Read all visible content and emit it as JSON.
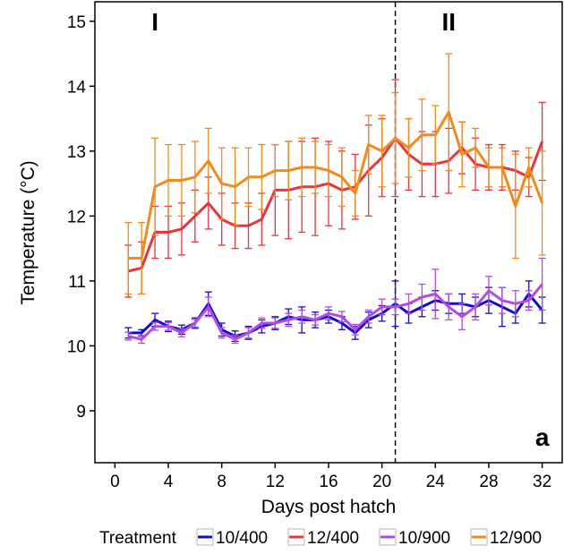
{
  "chart_data": {
    "type": "line",
    "xlabel": "Days post hatch",
    "ylabel": "Temperature (°C)",
    "xlim": [
      -1.5,
      33.5
    ],
    "ylim": [
      8.2,
      15.3
    ],
    "xticks": [
      0,
      4,
      8,
      12,
      16,
      20,
      24,
      28,
      32
    ],
    "yticks": [
      9,
      10,
      11,
      12,
      13,
      14,
      15
    ],
    "grid": false,
    "error_bars": true,
    "vline": {
      "x": 21,
      "style": "dashed"
    },
    "annotations": [
      {
        "text": "I",
        "x": 3,
        "y": 15
      },
      {
        "text": "II",
        "x": 25,
        "y": 15
      },
      {
        "text": "a",
        "x": 32,
        "y": 8.6
      }
    ],
    "legend": {
      "title": "Treatment",
      "position": "bottom"
    },
    "series": [
      {
        "name": "10/400",
        "color": "#1010c8",
        "x": [
          1,
          2,
          3,
          4,
          5,
          6,
          7,
          8,
          9,
          10,
          11,
          12,
          13,
          14,
          15,
          16,
          17,
          18,
          19,
          20,
          21,
          22,
          23,
          24,
          25,
          26,
          27,
          28,
          29,
          30,
          31,
          32
        ],
        "y": [
          10.2,
          10.2,
          10.4,
          10.3,
          10.25,
          10.35,
          10.65,
          10.25,
          10.15,
          10.2,
          10.3,
          10.35,
          10.45,
          10.4,
          10.4,
          10.45,
          10.35,
          10.2,
          10.4,
          10.5,
          10.65,
          10.5,
          10.6,
          10.7,
          10.65,
          10.65,
          10.6,
          10.7,
          10.6,
          10.5,
          10.8,
          10.55
        ],
        "err": [
          0.08,
          0.05,
          0.1,
          0.08,
          0.07,
          0.08,
          0.18,
          0.1,
          0.08,
          0.1,
          0.1,
          0.1,
          0.12,
          0.2,
          0.12,
          0.1,
          0.1,
          0.1,
          0.12,
          0.12,
          0.35,
          0.15,
          0.15,
          0.15,
          0.15,
          0.15,
          0.15,
          0.2,
          0.3,
          0.15,
          0.2,
          0.2
        ]
      },
      {
        "name": "12/400",
        "color": "#e8343c",
        "x": [
          1,
          2,
          3,
          4,
          5,
          6,
          7,
          8,
          9,
          10,
          11,
          12,
          13,
          14,
          15,
          16,
          17,
          18,
          19,
          20,
          21,
          22,
          23,
          24,
          25,
          26,
          27,
          28,
          29,
          30,
          31,
          32
        ],
        "y": [
          11.15,
          11.2,
          11.75,
          11.75,
          11.8,
          12.0,
          12.2,
          11.95,
          11.85,
          11.85,
          11.95,
          12.4,
          12.4,
          12.45,
          12.45,
          12.5,
          12.4,
          12.45,
          12.7,
          12.9,
          13.2,
          12.95,
          12.8,
          12.8,
          12.85,
          13.05,
          12.8,
          12.75,
          12.75,
          12.7,
          12.6,
          13.15
        ],
        "err": [
          0.4,
          0.4,
          0.4,
          0.4,
          0.4,
          0.4,
          0.4,
          0.4,
          0.35,
          0.35,
          0.4,
          0.7,
          0.75,
          0.7,
          0.75,
          0.65,
          0.6,
          0.5,
          0.7,
          0.6,
          0.9,
          0.55,
          0.5,
          0.5,
          0.5,
          0.4,
          0.4,
          0.35,
          0.35,
          0.3,
          0.3,
          0.6
        ]
      },
      {
        "name": "10/900",
        "color": "#b24be8",
        "x": [
          1,
          2,
          3,
          4,
          5,
          6,
          7,
          8,
          9,
          10,
          11,
          12,
          13,
          14,
          15,
          16,
          17,
          18,
          19,
          20,
          21,
          22,
          23,
          24,
          25,
          26,
          27,
          28,
          29,
          30,
          31,
          32
        ],
        "y": [
          10.15,
          10.1,
          10.3,
          10.3,
          10.2,
          10.35,
          10.6,
          10.2,
          10.1,
          10.2,
          10.35,
          10.35,
          10.4,
          10.45,
          10.4,
          10.5,
          10.45,
          10.25,
          10.45,
          10.6,
          10.6,
          10.65,
          10.75,
          10.8,
          10.6,
          10.45,
          10.6,
          10.85,
          10.7,
          10.65,
          10.7,
          10.95
        ],
        "err": [
          0.06,
          0.06,
          0.06,
          0.06,
          0.06,
          0.06,
          0.15,
          0.08,
          0.06,
          0.08,
          0.08,
          0.08,
          0.1,
          0.1,
          0.08,
          0.1,
          0.08,
          0.08,
          0.1,
          0.12,
          0.12,
          0.15,
          0.2,
          0.38,
          0.2,
          0.2,
          0.2,
          0.22,
          0.2,
          0.2,
          0.15,
          0.4
        ]
      },
      {
        "name": "12/900",
        "color": "#f28a1c",
        "x": [
          1,
          2,
          3,
          4,
          5,
          6,
          7,
          8,
          9,
          10,
          11,
          12,
          13,
          14,
          15,
          16,
          17,
          18,
          19,
          20,
          21,
          22,
          23,
          24,
          25,
          26,
          27,
          28,
          29,
          30,
          31,
          32
        ],
        "y": [
          11.35,
          11.35,
          12.45,
          12.55,
          12.55,
          12.6,
          12.85,
          12.5,
          12.45,
          12.6,
          12.6,
          12.7,
          12.7,
          12.75,
          12.75,
          12.7,
          12.6,
          12.35,
          13.1,
          13.0,
          13.2,
          13.05,
          13.25,
          13.25,
          13.6,
          12.95,
          13.05,
          12.75,
          12.75,
          12.15,
          12.75,
          12.2
        ],
        "err": [
          0.55,
          0.55,
          0.75,
          0.55,
          0.55,
          0.55,
          0.5,
          0.55,
          0.6,
          0.45,
          0.5,
          0.4,
          0.45,
          0.45,
          0.4,
          0.4,
          0.45,
          0.35,
          0.45,
          0.55,
          0.7,
          0.45,
          0.55,
          0.45,
          0.9,
          0.5,
          0.3,
          0.3,
          0.3,
          0.8,
          0.3,
          0.8
        ]
      }
    ]
  }
}
